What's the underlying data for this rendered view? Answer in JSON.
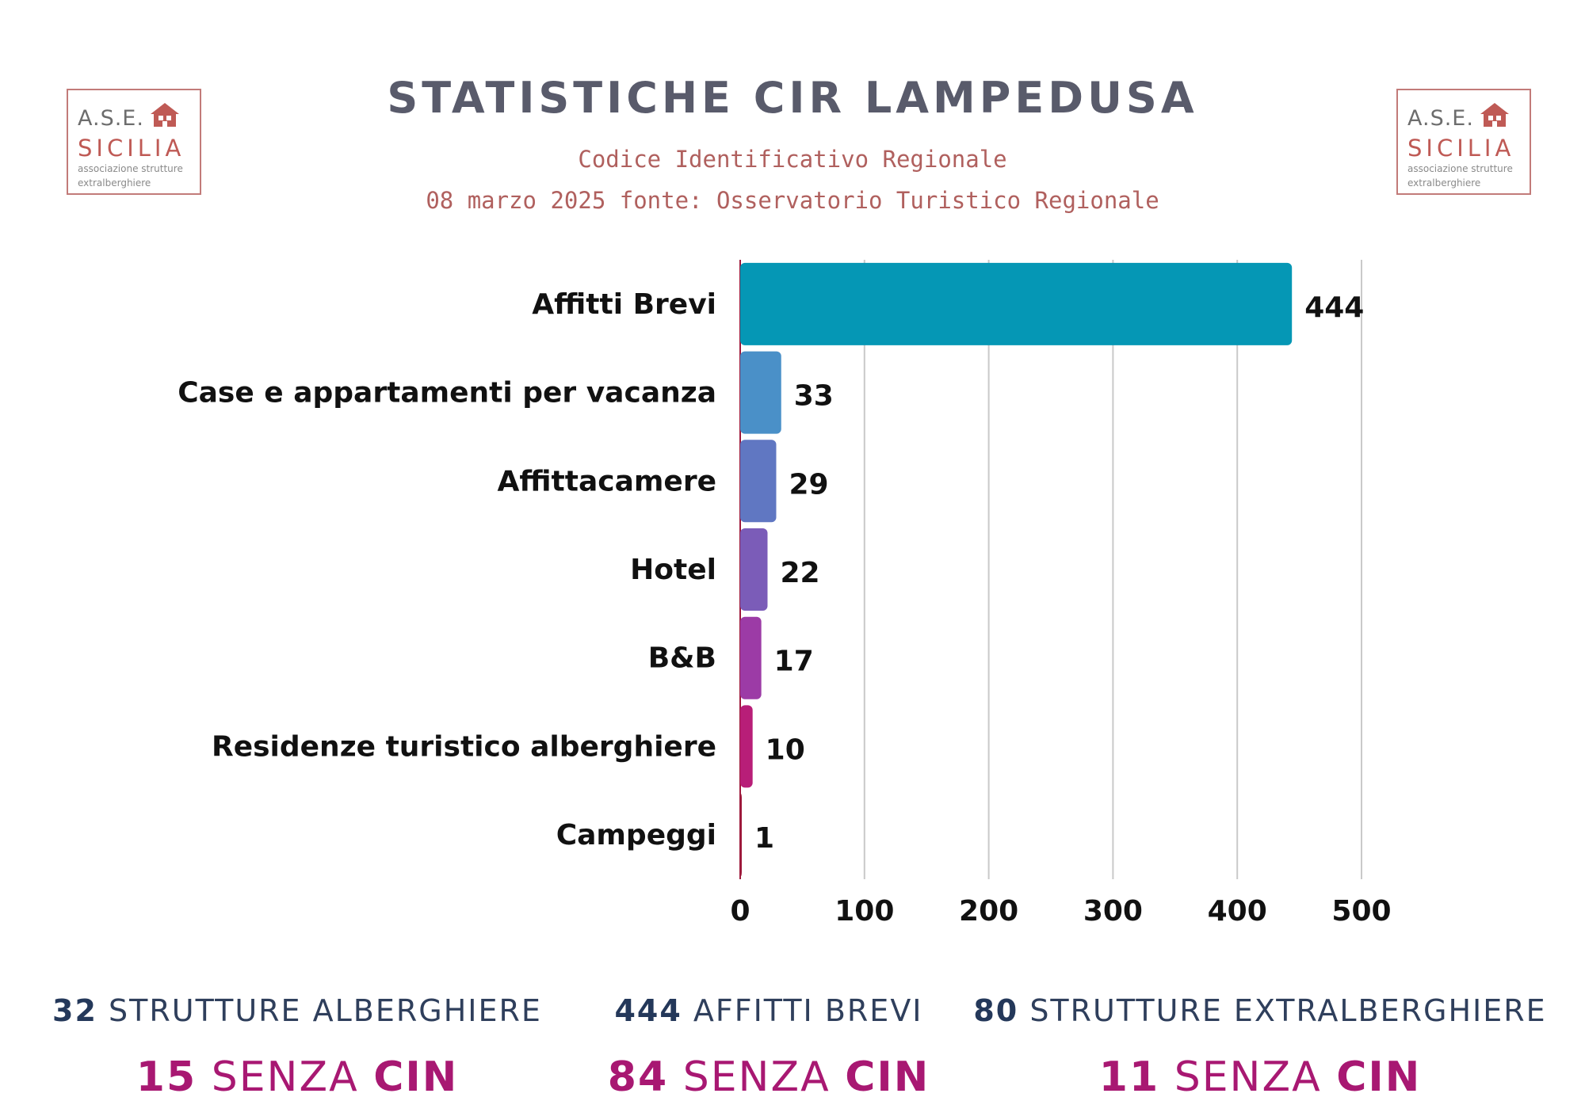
{
  "header": {
    "title": "STATISTICHE CIR LAMPEDUSA",
    "subtitle_line1": "Codice Identificativo Regionale",
    "subtitle_line2": "08 marzo 2025 fonte: Osservatorio Turistico Regionale"
  },
  "logo": {
    "line1": "A.S.E.",
    "line2": "SICILIA",
    "line3": "associazione strutture",
    "line4": "extralberghiere"
  },
  "chart_data": {
    "type": "bar",
    "orientation": "horizontal",
    "categories": [
      "Affitti Brevi",
      "Case e appartamenti per vacanza",
      "Affittacamere",
      "Hotel",
      "B&B",
      "Residenze turistico alberghiere",
      "Campeggi"
    ],
    "values": [
      444,
      33,
      29,
      22,
      17,
      10,
      1
    ],
    "colors": [
      "#0597b5",
      "#4a90c8",
      "#6077c2",
      "#7b5cb8",
      "#9c3ba6",
      "#b81e78",
      "#9e1a3c"
    ],
    "xlim": [
      0,
      500
    ],
    "xticks": [
      "0",
      "100",
      "200",
      "300",
      "400",
      "500"
    ],
    "grid": true
  },
  "stats": [
    {
      "count": "32",
      "label": "STRUTTURE ALBERGHIERE",
      "missing": "15",
      "senza": "SENZA",
      "cin": "CIN"
    },
    {
      "count": "444",
      "label": "AFFITTI BREVI",
      "missing": "84",
      "senza": "SENZA",
      "cin": "CIN"
    },
    {
      "count": "80",
      "label": "STRUTTURE EXTRALBERGHIERE",
      "missing": "11",
      "senza": "SENZA",
      "cin": "CIN"
    }
  ]
}
